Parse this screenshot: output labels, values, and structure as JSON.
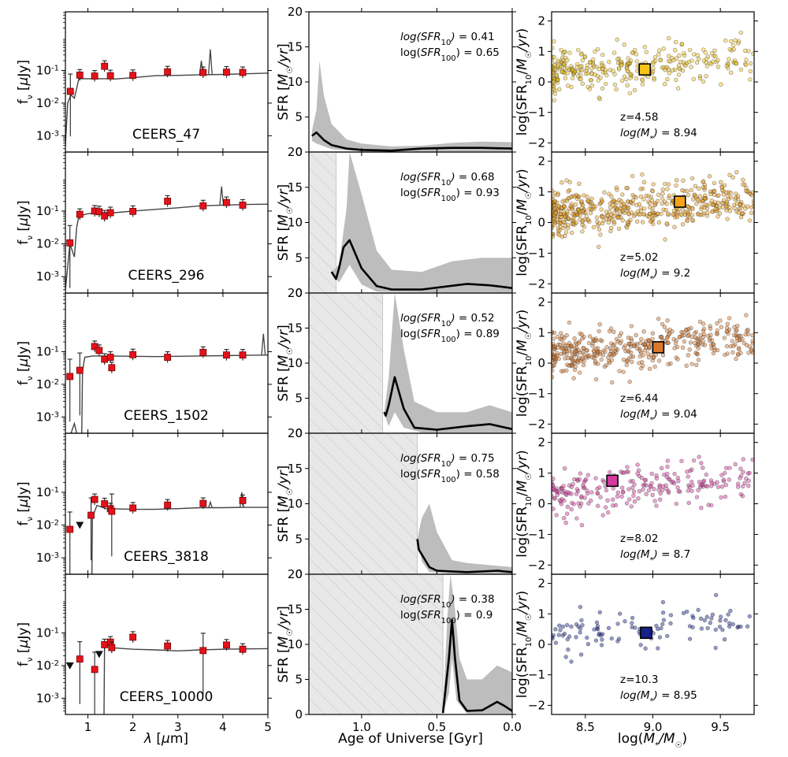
{
  "chart_data": {
    "type": "scatter",
    "columns": {
      "sed": {
        "xlabel": "λ [μm]",
        "ylabel": "f_ν [μJy]",
        "xlim": [
          0.5,
          5.0
        ],
        "ylim_log": [
          -3.5,
          0.8
        ],
        "xticks": [
          1,
          2,
          3,
          4,
          5
        ],
        "yticks": [
          {
            "v": -3,
            "label": "10-3"
          },
          {
            "v": -2,
            "label": "10-2"
          },
          {
            "v": -1,
            "label": "10-1"
          }
        ]
      },
      "sfh": {
        "xlabel": "Age of Universe [Gyr]",
        "ylabel": "SFR [M☉/yr]",
        "xlim": [
          1.35,
          0.0
        ],
        "ylim": [
          0,
          20
        ],
        "xticks": [
          {
            "v": 1.0,
            "label": "1.0"
          },
          {
            "v": 0.5,
            "label": "0.5"
          },
          {
            "v": 0.0,
            "label": "0.0"
          }
        ],
        "yticks": [
          0,
          5,
          10,
          15,
          20
        ]
      },
      "ms": {
        "xlabel": "log(M*/M☉)",
        "ylabel": "log(SFR10/M☉/yr)",
        "xlim": [
          8.25,
          9.75
        ],
        "ylim": [
          -2.3,
          2.3
        ],
        "xticks": [
          8.5,
          9.0,
          9.5
        ],
        "yticks": [
          -2,
          -1,
          0,
          1,
          2
        ]
      }
    },
    "galaxies": [
      {
        "name": "CEERS_47",
        "z": "4.58",
        "logM": "8.94",
        "logSFR10": "0.41",
        "logSFR100": "0.65",
        "color": "#f5c518",
        "mass": 8.94,
        "sfr10": 0.41,
        "photometry": [
          [
            0.61,
            -1.64
          ],
          [
            0.82,
            -1.14
          ],
          [
            1.15,
            -1.17
          ],
          [
            1.37,
            -0.87
          ],
          [
            1.5,
            -1.16
          ],
          [
            2.0,
            -1.15
          ],
          [
            2.77,
            -1.04
          ],
          [
            3.56,
            -1.06
          ],
          [
            4.08,
            -1.05
          ],
          [
            4.44,
            -1.06
          ]
        ],
        "upper_limits": [],
        "sed_model": [
          [
            0.5,
            -3.3
          ],
          [
            0.55,
            -2.0
          ],
          [
            0.62,
            -1.75
          ],
          [
            0.7,
            -1.85
          ],
          [
            0.8,
            -1.25
          ],
          [
            1.0,
            -1.25
          ],
          [
            1.2,
            -1.25
          ],
          [
            1.4,
            -1.25
          ],
          [
            1.6,
            -1.26
          ],
          [
            2.0,
            -1.22
          ],
          [
            2.5,
            -1.16
          ],
          [
            3.0,
            -1.15
          ],
          [
            3.5,
            -1.13
          ],
          [
            4.0,
            -1.12
          ],
          [
            4.5,
            -1.1
          ],
          [
            5.0,
            -1.08
          ]
        ],
        "sed_lines": [
          [
            3.52,
            -0.7
          ],
          [
            3.72,
            -0.35
          ]
        ],
        "sfh_mean": [
          [
            1.33,
            2.3
          ],
          [
            1.3,
            2.8
          ],
          [
            1.25,
            1.7
          ],
          [
            1.2,
            1.0
          ],
          [
            1.1,
            0.5
          ],
          [
            1.0,
            0.3
          ],
          [
            0.8,
            0.2
          ],
          [
            0.6,
            0.5
          ],
          [
            0.4,
            0.6
          ],
          [
            0.2,
            0.6
          ],
          [
            0.0,
            0.5
          ]
        ],
        "sfh_upper": [
          [
            1.33,
            3.0
          ],
          [
            1.3,
            6
          ],
          [
            1.28,
            13
          ],
          [
            1.25,
            8
          ],
          [
            1.2,
            4.0
          ],
          [
            1.1,
            1.8
          ],
          [
            1.0,
            1.2
          ],
          [
            0.8,
            0.8
          ],
          [
            0.6,
            0.9
          ],
          [
            0.4,
            1.3
          ],
          [
            0.2,
            1.5
          ],
          [
            0.0,
            1.4
          ]
        ],
        "sfh_lower": [
          [
            1.33,
            1.6
          ],
          [
            1.3,
            1.2
          ],
          [
            1.2,
            0.4
          ],
          [
            1.0,
            0.1
          ],
          [
            0.5,
            0.1
          ],
          [
            0.0,
            0.1
          ]
        ],
        "hatch_until": null
      },
      {
        "name": "CEERS_296",
        "z": "5.02",
        "logM": "9.2",
        "logSFR10": "0.68",
        "logSFR100": "0.93",
        "color": "#f4a41a",
        "mass": 9.2,
        "sfr10": 0.68,
        "photometry": [
          [
            0.6,
            -1.97
          ],
          [
            0.82,
            -1.1
          ],
          [
            1.15,
            -1.0
          ],
          [
            1.25,
            -1.02
          ],
          [
            1.37,
            -1.15
          ],
          [
            1.5,
            -1.05
          ],
          [
            2.0,
            -1.01
          ],
          [
            2.77,
            -0.7
          ],
          [
            3.56,
            -0.84
          ],
          [
            4.08,
            -0.74
          ],
          [
            4.44,
            -0.82
          ]
        ],
        "upper_limits": [],
        "sed_model": [
          [
            0.5,
            -3.4
          ],
          [
            0.6,
            -2.0
          ],
          [
            0.7,
            -2.4
          ],
          [
            0.75,
            -1.5
          ],
          [
            0.8,
            -1.15
          ],
          [
            1.0,
            -1.08
          ],
          [
            1.3,
            -1.05
          ],
          [
            1.6,
            -1.05
          ],
          [
            2.0,
            -1.0
          ],
          [
            2.5,
            -0.95
          ],
          [
            3.0,
            -0.9
          ],
          [
            3.5,
            -0.84
          ],
          [
            4.0,
            -0.82
          ],
          [
            4.5,
            -0.8
          ],
          [
            5.0,
            -0.79
          ]
        ],
        "sed_lines": [
          [
            3.97,
            -0.25
          ]
        ],
        "sfh_mean": [
          [
            1.2,
            3.0
          ],
          [
            1.17,
            2.0
          ],
          [
            1.15,
            3.5
          ],
          [
            1.12,
            6.5
          ],
          [
            1.08,
            7.5
          ],
          [
            1.0,
            3.5
          ],
          [
            0.9,
            1.0
          ],
          [
            0.8,
            0.5
          ],
          [
            0.6,
            0.5
          ],
          [
            0.3,
            1.3
          ],
          [
            0.15,
            1.1
          ],
          [
            0.0,
            0.7
          ]
        ],
        "sfh_upper": [
          [
            1.2,
            3.0
          ],
          [
            1.15,
            4.0
          ],
          [
            1.1,
            12
          ],
          [
            1.08,
            20
          ],
          [
            1.0,
            14
          ],
          [
            0.9,
            6
          ],
          [
            0.8,
            3.3
          ],
          [
            0.6,
            3.0
          ],
          [
            0.4,
            4.5
          ],
          [
            0.2,
            5.0
          ],
          [
            0.0,
            5.0
          ]
        ],
        "sfh_lower": [
          [
            1.2,
            2.8
          ],
          [
            1.15,
            1.5
          ],
          [
            1.08,
            4.0
          ],
          [
            1.0,
            1.2
          ],
          [
            0.9,
            0.2
          ],
          [
            0.5,
            0.1
          ],
          [
            0.0,
            0.1
          ]
        ],
        "hatch_until": 1.17
      },
      {
        "name": "CEERS_1502",
        "z": "6.44",
        "logM": "9.04",
        "logSFR10": "0.52",
        "logSFR100": "0.89",
        "color": "#d9772b",
        "mass": 9.04,
        "sfr10": 0.52,
        "photometry": [
          [
            0.6,
            -1.76
          ],
          [
            0.82,
            -1.57
          ],
          [
            1.15,
            -0.84
          ],
          [
            1.25,
            -0.96
          ],
          [
            1.37,
            -1.23
          ],
          [
            1.5,
            -1.17
          ],
          [
            1.53,
            -1.49
          ],
          [
            2.0,
            -1.09
          ],
          [
            2.77,
            -1.17
          ],
          [
            3.56,
            -1.02
          ],
          [
            4.08,
            -1.1
          ],
          [
            4.44,
            -1.1
          ]
        ],
        "upper_limits": [],
        "sed_model": [
          [
            0.5,
            -3.8
          ],
          [
            0.6,
            -3.6
          ],
          [
            0.7,
            -3.2
          ],
          [
            0.75,
            -3.5
          ],
          [
            0.8,
            -3.9
          ],
          [
            0.86,
            -3.8
          ],
          [
            0.88,
            -1.6
          ],
          [
            0.93,
            -1.17
          ],
          [
            1.1,
            -1.13
          ],
          [
            1.5,
            -1.13
          ],
          [
            2.0,
            -1.14
          ],
          [
            2.5,
            -1.15
          ],
          [
            3.0,
            -1.14
          ],
          [
            3.5,
            -1.13
          ],
          [
            4.0,
            -1.12
          ],
          [
            4.5,
            -1.11
          ],
          [
            5.0,
            -1.1
          ]
        ],
        "sed_lines": [
          [
            4.9,
            -0.45
          ]
        ],
        "sfh_mean": [
          [
            0.85,
            3.0
          ],
          [
            0.84,
            2.5
          ],
          [
            0.82,
            4.0
          ],
          [
            0.78,
            8.0
          ],
          [
            0.72,
            3.5
          ],
          [
            0.65,
            0.8
          ],
          [
            0.5,
            0.5
          ],
          [
            0.3,
            1.0
          ],
          [
            0.15,
            1.3
          ],
          [
            0.0,
            0.6
          ]
        ],
        "sfh_upper": [
          [
            0.85,
            3.0
          ],
          [
            0.82,
            8
          ],
          [
            0.78,
            20
          ],
          [
            0.72,
            12
          ],
          [
            0.65,
            4.5
          ],
          [
            0.5,
            3.0
          ],
          [
            0.3,
            3.0
          ],
          [
            0.15,
            4.0
          ],
          [
            0.0,
            3.0
          ]
        ],
        "sfh_lower": [
          [
            0.85,
            2.8
          ],
          [
            0.82,
            1.0
          ],
          [
            0.78,
            3.0
          ],
          [
            0.72,
            0.8
          ],
          [
            0.6,
            0.1
          ],
          [
            0.0,
            0.1
          ]
        ],
        "hatch_until": 0.86
      },
      {
        "name": "CEERS_3818",
        "z": "8.02",
        "logM": "8.7",
        "logSFR10": "0.75",
        "logSFR100": "0.58",
        "color": "#d63a9e",
        "mass": 8.7,
        "sfr10": 0.75,
        "photometry": [
          [
            0.6,
            -2.13
          ],
          [
            1.07,
            -1.7
          ],
          [
            1.15,
            -1.22
          ],
          [
            1.37,
            -1.35
          ],
          [
            1.5,
            -1.5
          ],
          [
            1.53,
            -1.58
          ],
          [
            2.0,
            -1.48
          ],
          [
            2.77,
            -1.39
          ],
          [
            3.56,
            -1.34
          ],
          [
            4.44,
            -1.25
          ]
        ],
        "upper_limits": [
          [
            0.82,
            -2.0
          ]
        ],
        "sed_model": [
          [
            0.5,
            -5
          ],
          [
            1.08,
            -5
          ],
          [
            1.1,
            -1.75
          ],
          [
            1.2,
            -1.4
          ],
          [
            1.4,
            -1.5
          ],
          [
            2.0,
            -1.52
          ],
          [
            2.5,
            -1.52
          ],
          [
            3.0,
            -1.5
          ],
          [
            3.5,
            -1.47
          ],
          [
            4.0,
            -1.47
          ],
          [
            4.5,
            -1.46
          ],
          [
            5.0,
            -1.46
          ]
        ],
        "sed_lines": [
          [
            4.42,
            -1.0
          ],
          [
            3.72,
            -1.3
          ]
        ],
        "sfh_mean": [
          [
            0.63,
            5.0
          ],
          [
            0.62,
            3.5
          ],
          [
            0.6,
            2.8
          ],
          [
            0.55,
            1.0
          ],
          [
            0.5,
            0.5
          ],
          [
            0.3,
            0.3
          ],
          [
            0.1,
            0.5
          ],
          [
            0.0,
            0.3
          ]
        ],
        "sfh_upper": [
          [
            0.63,
            5.0
          ],
          [
            0.6,
            8
          ],
          [
            0.55,
            10
          ],
          [
            0.5,
            6
          ],
          [
            0.4,
            2.0
          ],
          [
            0.3,
            1.6
          ],
          [
            0.1,
            1.2
          ],
          [
            0.0,
            1.0
          ]
        ],
        "sfh_lower": [
          [
            0.63,
            4.8
          ],
          [
            0.6,
            1.8
          ],
          [
            0.55,
            0.3
          ],
          [
            0.4,
            0.1
          ],
          [
            0.0,
            0.1
          ]
        ],
        "hatch_until": 0.63
      },
      {
        "name": "CEERS_10000",
        "z": "10.3",
        "logM": "8.95",
        "logSFR10": "0.38",
        "logSFR100": "0.9",
        "color": "#17238a",
        "mass": 8.95,
        "sfr10": 0.38,
        "photometry": [
          [
            0.82,
            -1.8
          ],
          [
            1.15,
            -2.12
          ],
          [
            1.37,
            -1.36
          ],
          [
            1.5,
            -1.28
          ],
          [
            1.53,
            -1.45
          ],
          [
            2.0,
            -1.13
          ],
          [
            2.77,
            -1.4
          ],
          [
            3.56,
            -1.54
          ],
          [
            4.08,
            -1.37
          ],
          [
            4.44,
            -1.5
          ]
        ],
        "upper_limits": [
          [
            0.6,
            -2.0
          ],
          [
            1.25,
            -1.65
          ]
        ],
        "sed_model": [
          [
            0.5,
            -5
          ],
          [
            1.35,
            -5
          ],
          [
            1.37,
            -1.35
          ],
          [
            1.6,
            -1.46
          ],
          [
            2.0,
            -1.5
          ],
          [
            2.5,
            -1.52
          ],
          [
            3.0,
            -1.55
          ],
          [
            3.5,
            -1.52
          ],
          [
            4.0,
            -1.5
          ],
          [
            4.5,
            -1.49
          ],
          [
            5.0,
            -1.48
          ]
        ],
        "sed_lines": [],
        "sfh_mean": [
          [
            0.46,
            0.2
          ],
          [
            0.42,
            8
          ],
          [
            0.4,
            13.5
          ],
          [
            0.38,
            8
          ],
          [
            0.35,
            2
          ],
          [
            0.3,
            0.5
          ],
          [
            0.2,
            0.6
          ],
          [
            0.1,
            1.8
          ],
          [
            0.05,
            1.2
          ],
          [
            0.0,
            0.5
          ]
        ],
        "sfh_upper": [
          [
            0.46,
            0.5
          ],
          [
            0.43,
            14
          ],
          [
            0.41,
            20
          ],
          [
            0.38,
            15
          ],
          [
            0.35,
            8
          ],
          [
            0.3,
            5
          ],
          [
            0.2,
            5
          ],
          [
            0.1,
            7
          ],
          [
            0.0,
            6
          ]
        ],
        "sfh_lower": [
          [
            0.46,
            0.1
          ],
          [
            0.42,
            3
          ],
          [
            0.4,
            8
          ],
          [
            0.37,
            2
          ],
          [
            0.3,
            0.1
          ],
          [
            0.0,
            0.1
          ]
        ],
        "hatch_until": 0.46
      }
    ]
  }
}
